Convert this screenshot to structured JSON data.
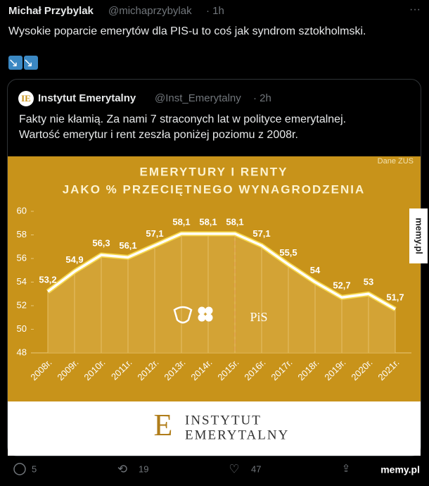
{
  "tweet": {
    "author": "Michał Przybylak",
    "handle": "@michaprzybylak",
    "time": "· 1h",
    "text": "Wysokie poparcie emerytów dla PIS-u to coś jak syndrom sztokholmski.",
    "arrows": "↘↘",
    "replies": "5",
    "retweets": "19",
    "likes": "47"
  },
  "quoted": {
    "author": "Instytut Emerytalny",
    "handle": "@Inst_Emerytalny",
    "time": "· 2h",
    "text_lines": [
      "Fakty nie kłamią. Za nami 7 straconych lat w polityce emerytalnej.",
      "Wartość emerytur i rent zeszła poniżej poziomu z 2008r."
    ]
  },
  "watermarks": [
    "memy.pl",
    "memy.pl"
  ],
  "logo": {
    "line1": "Instytut",
    "line2": "Emerytalny",
    "party": "PiS"
  },
  "chart_data": {
    "type": "line",
    "title_lines": [
      "EMERYTURY I RENTY",
      "JAKO % PRZECIĘTNEGO WYNAGRODZENIA"
    ],
    "source": "Dane ZUS",
    "categories": [
      "2008r.",
      "2009r.",
      "2010r.",
      "2011r.",
      "2012r.",
      "2013r.",
      "2014r.",
      "2015r.",
      "2016r.",
      "2017r.",
      "2018r.",
      "2019r.",
      "2020r.",
      "2021r."
    ],
    "values": [
      53.2,
      54.9,
      56.3,
      56.1,
      57.1,
      58.1,
      58.1,
      58.1,
      57.1,
      55.5,
      54,
      52.7,
      53,
      51.7
    ],
    "value_labels": [
      "53,2",
      "54,9",
      "56,3",
      "56,1",
      "57,1",
      "58,1",
      "58,1",
      "58,1",
      "57,1",
      "55,5",
      "54",
      "52,7",
      "53",
      "51,7"
    ],
    "color": "#ffffff",
    "ylim": [
      48,
      60
    ],
    "yticks": [
      48,
      50,
      52,
      54,
      56,
      58,
      60
    ],
    "divider_at": "2015r.",
    "divider_color": "#d8201c"
  }
}
